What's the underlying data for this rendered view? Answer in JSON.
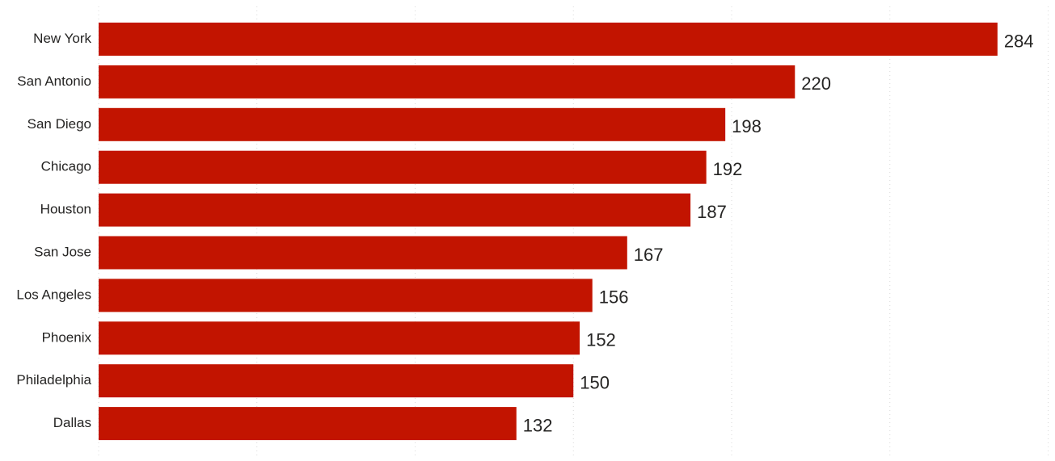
{
  "chart_data": {
    "type": "bar",
    "orientation": "horizontal",
    "categories": [
      "New York",
      "San Antonio",
      "San Diego",
      "Chicago",
      "Houston",
      "San Jose",
      "Los Angeles",
      "Phoenix",
      "Philadelphia",
      "Dallas"
    ],
    "values": [
      284,
      220,
      198,
      192,
      187,
      167,
      156,
      152,
      150,
      132
    ],
    "title": "",
    "xlabel": "",
    "ylabel": "",
    "xlim": [
      0,
      300
    ],
    "grid": true,
    "legend": "none",
    "data_labels": true,
    "colors": {
      "bar": "#c21400",
      "text": "#252423",
      "grid": "#d9d9d9"
    }
  }
}
